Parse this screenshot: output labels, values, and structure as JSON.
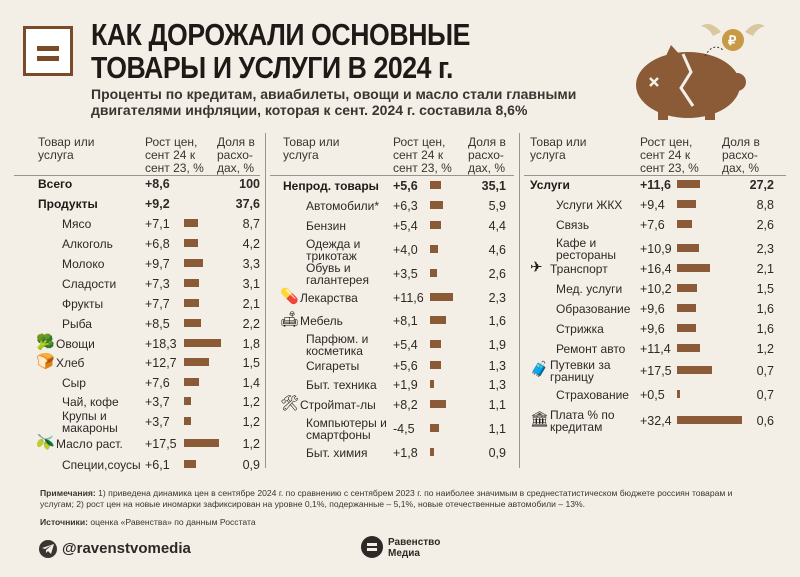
{
  "header": {
    "title_line1": "КАК ДОРОЖАЛИ ОСНОВНЫЕ",
    "title_line2": "ТОВАРЫ И УСЛУГИ В 2024 г.",
    "subtitle": "Проценты по кредитам, авиабилеты, овощи и масло стали главными двигателями инфляции, которая к сент. 2024 г. составила 8,6%"
  },
  "column_headers": {
    "item": "Товар или услуга",
    "growth": "Рост цен, сент 24 к сент 23, %",
    "share": "Доля в расхо-дах, %"
  },
  "colors": {
    "bar": "#8b5a37",
    "background": "#f4efe6",
    "text": "#1f1a17"
  },
  "chart_data": {
    "type": "bar",
    "value_label": "Рост цен, сент 24 к сент 23, %",
    "share_label": "Доля в расходах, %",
    "panels": [
      {
        "rows": [
          {
            "name": "Всего",
            "growth": "+8,6",
            "value": 8.6,
            "share": "100",
            "bold": true,
            "bar": false
          },
          {
            "name": "Продукты",
            "growth": "+9,2",
            "value": 9.2,
            "share": "37,6",
            "bold": true,
            "bar": false
          },
          {
            "name": "Мясо",
            "growth": "+7,1",
            "value": 7.1,
            "share": "8,7",
            "indent": 1
          },
          {
            "name": "Алкоголь",
            "growth": "+6,8",
            "value": 6.8,
            "share": "4,2",
            "indent": 1
          },
          {
            "name": "Молоко",
            "growth": "+9,7",
            "value": 9.7,
            "share": "3,3",
            "indent": 1
          },
          {
            "name": "Сладости",
            "growth": "+7,3",
            "value": 7.3,
            "share": "3,1",
            "indent": 1
          },
          {
            "name": "Фрукты",
            "growth": "+7,7",
            "value": 7.7,
            "share": "2,1",
            "indent": 1
          },
          {
            "name": "Рыба",
            "growth": "+8,5",
            "value": 8.5,
            "share": "2,2",
            "indent": 1
          },
          {
            "name": "Овощи",
            "growth": "+18,3",
            "value": 18.3,
            "share": "1,8",
            "icon": "vegetables-icon",
            "icon_glyph": "🥦"
          },
          {
            "name": "Хлеб",
            "growth": "+12,7",
            "value": 12.7,
            "share": "1,5",
            "icon": "bread-icon",
            "icon_glyph": "🍞"
          },
          {
            "name": "Сыр",
            "growth": "+7,6",
            "value": 7.6,
            "share": "1,4",
            "indent": 1
          },
          {
            "name": "Чай, кофе",
            "growth": "+3,7",
            "value": 3.7,
            "share": "1,2",
            "indent": 1
          },
          {
            "name": "Крупы и макароны",
            "growth": "+3,7",
            "value": 3.7,
            "share": "1,2",
            "indent": 1,
            "two_line": true
          },
          {
            "name": "Масло раст.",
            "growth": "+17,5",
            "value": 17.5,
            "share": "1,2",
            "icon": "oil-bottle-icon",
            "icon_glyph": "🫒"
          },
          {
            "name": "Специи,соусы",
            "growth": "+6,1",
            "value": 6.1,
            "share": "0,9",
            "indent": 1
          }
        ]
      },
      {
        "rows": [
          {
            "name": "Непрод. товары",
            "growth": "+5,6",
            "value": 5.6,
            "share": "35,1",
            "bold": true
          },
          {
            "name": "Автомобили*",
            "growth": "+6,3",
            "value": 6.3,
            "share": "5,9",
            "indent": 1
          },
          {
            "name": "Бензин",
            "growth": "+5,4",
            "value": 5.4,
            "share": "4,4",
            "indent": 1
          },
          {
            "name": "Одежда и трикотаж",
            "growth": "+4,0",
            "value": 4.0,
            "share": "4,6",
            "indent": 1,
            "two_line": true
          },
          {
            "name": "Обувь и галантерея",
            "growth": "+3,5",
            "value": 3.5,
            "share": "2,6",
            "indent": 1,
            "two_line": true
          },
          {
            "name": "Лекарства",
            "growth": "+11,6",
            "value": 11.6,
            "share": "2,3",
            "icon": "medicine-icon",
            "icon_glyph": "💊"
          },
          {
            "name": "Мебель",
            "growth": "+8,1",
            "value": 8.1,
            "share": "1,6",
            "icon": "sofa-icon",
            "icon_glyph": "🛋"
          },
          {
            "name": "Парфюм. и косметика",
            "growth": "+5,4",
            "value": 5.4,
            "share": "1,9",
            "indent": 1,
            "two_line": true
          },
          {
            "name": "Сигареты",
            "growth": "+5,6",
            "value": 5.6,
            "share": "1,3",
            "indent": 1
          },
          {
            "name": "Быт. техника",
            "growth": "+1,9",
            "value": 1.9,
            "share": "1,3",
            "indent": 1
          },
          {
            "name": "Стройmат-лы",
            "growth": "+8,2",
            "value": 8.2,
            "share": "1,1",
            "icon": "tools-icon",
            "icon_glyph": "🛠"
          },
          {
            "name": "Компьютеры и смартфоны",
            "growth": "-4,5",
            "value": -4.5,
            "share": "1,1",
            "indent": 1,
            "two_line": true
          },
          {
            "name": "Быт. химия",
            "growth": "+1,8",
            "value": 1.8,
            "share": "0,9",
            "indent": 1
          }
        ]
      },
      {
        "rows": [
          {
            "name": "Услуги",
            "growth": "+11,6",
            "value": 11.6,
            "share": "27,2",
            "bold": true
          },
          {
            "name": "Услуги ЖКХ",
            "growth": "+9,4",
            "value": 9.4,
            "share": "8,8",
            "indent": 1
          },
          {
            "name": "Связь",
            "growth": "+7,6",
            "value": 7.6,
            "share": "2,6",
            "indent": 1
          },
          {
            "name": "Кафе и рестораны",
            "growth": "+10,9",
            "value": 10.9,
            "share": "2,3",
            "indent": 1,
            "two_line": true
          },
          {
            "name": "Транспорт",
            "growth": "+16,4",
            "value": 16.4,
            "share": "2,1",
            "icon": "airplane-icon",
            "icon_glyph": "✈"
          },
          {
            "name": "Мед. услуги",
            "growth": "+10,2",
            "value": 10.2,
            "share": "1,5",
            "indent": 1
          },
          {
            "name": "Образование",
            "growth": "+9,6",
            "value": 9.6,
            "share": "1,6",
            "indent": 1
          },
          {
            "name": "Стрижка",
            "growth": "+9,6",
            "value": 9.6,
            "share": "1,6",
            "indent": 1
          },
          {
            "name": "Ремонт авто",
            "growth": "+11,4",
            "value": 11.4,
            "share": "1,2",
            "indent": 1
          },
          {
            "name": "Путевки за границу",
            "growth": "+17,5",
            "value": 17.5,
            "share": "0,7",
            "icon": "luggage-icon",
            "icon_glyph": "🧳",
            "two_line": true
          },
          {
            "name": "Страхование",
            "growth": "+0,5",
            "value": 0.5,
            "share": "0,7",
            "indent": 1
          },
          {
            "name": "Плата % по кредитам",
            "growth": "+32,4",
            "value": 32.4,
            "share": "0,6",
            "icon": "bank-icon",
            "icon_glyph": "🏛",
            "two_line": true
          }
        ]
      }
    ]
  },
  "footer": {
    "notes_label": "Примечания:",
    "notes_text": " 1) приведена динамика цен в сентябре 2024 г. по сравнению с сентябрем 2023 г. по наиболее значимым в среднестатистическом бюджете россиян товарам и услугам; 2) рост цен на новые иномарки зафиксирован на уровне 0,1%, подержанные – 5,1%, новые отечественные автомобили – 13%.",
    "sources_label": "Источники:",
    "sources_text": " оценка «Равенства» по данным Росстата",
    "handle": "@ravenstvomedia",
    "brand_line1": "Равенство",
    "brand_line2": "Медиа"
  }
}
